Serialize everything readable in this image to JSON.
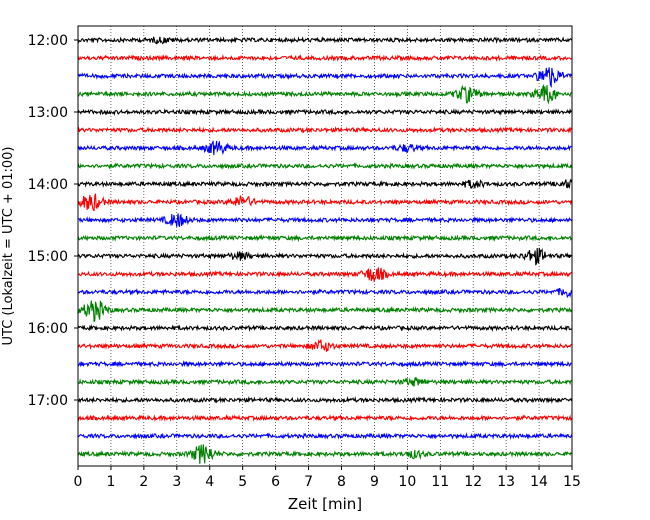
{
  "chart_data": {
    "type": "line",
    "title": "",
    "xlabel": "Zeit  [min]",
    "ylabel": "UTC (Lokalzeit = UTC + 01:00)",
    "xlim": [
      0,
      15
    ],
    "x_ticks": [
      "0",
      "1",
      "2",
      "3",
      "4",
      "5",
      "6",
      "7",
      "8",
      "9",
      "10",
      "11",
      "12",
      "13",
      "14",
      "15"
    ],
    "y_ticks": [
      "12:00",
      "13:00",
      "14:00",
      "15:00",
      "16:00",
      "17:00"
    ],
    "grid": "vertical dotted at each minute",
    "trace_colors": [
      "#000000",
      "#ff0000",
      "#0000ff",
      "#008000"
    ],
    "series": [
      {
        "start": "12:00",
        "color": "#000000",
        "events": [
          [
            2.5,
            2
          ]
        ]
      },
      {
        "start": "12:15",
        "color": "#ff0000",
        "events": []
      },
      {
        "start": "12:30",
        "color": "#0000ff",
        "events": [
          [
            14.3,
            10
          ]
        ]
      },
      {
        "start": "12:45",
        "color": "#008000",
        "events": [
          [
            11.8,
            7
          ],
          [
            14.2,
            8
          ]
        ]
      },
      {
        "start": "13:00",
        "color": "#000000",
        "events": []
      },
      {
        "start": "13:15",
        "color": "#ff0000",
        "events": []
      },
      {
        "start": "13:30",
        "color": "#0000ff",
        "events": [
          [
            4.2,
            6
          ],
          [
            10.0,
            3
          ]
        ]
      },
      {
        "start": "13:45",
        "color": "#008000",
        "events": []
      },
      {
        "start": "14:00",
        "color": "#000000",
        "events": [
          [
            12.0,
            3
          ],
          [
            14.9,
            3
          ]
        ]
      },
      {
        "start": "14:15",
        "color": "#ff0000",
        "events": [
          [
            0.4,
            8
          ],
          [
            5.0,
            5
          ]
        ]
      },
      {
        "start": "14:30",
        "color": "#0000ff",
        "events": [
          [
            3.0,
            6
          ]
        ]
      },
      {
        "start": "14:45",
        "color": "#008000",
        "events": []
      },
      {
        "start": "15:00",
        "color": "#000000",
        "events": [
          [
            4.9,
            3
          ],
          [
            13.9,
            7
          ]
        ]
      },
      {
        "start": "15:15",
        "color": "#ff0000",
        "events": [
          [
            9.0,
            7
          ]
        ]
      },
      {
        "start": "15:30",
        "color": "#0000ff",
        "events": [
          [
            14.9,
            4
          ]
        ]
      },
      {
        "start": "15:45",
        "color": "#008000",
        "events": [
          [
            0.5,
            10
          ]
        ]
      },
      {
        "start": "16:00",
        "color": "#000000",
        "events": []
      },
      {
        "start": "16:15",
        "color": "#ff0000",
        "events": [
          [
            7.4,
            5
          ]
        ]
      },
      {
        "start": "16:30",
        "color": "#0000ff",
        "events": []
      },
      {
        "start": "16:45",
        "color": "#008000",
        "events": [
          [
            10.2,
            3
          ]
        ]
      },
      {
        "start": "17:00",
        "color": "#000000",
        "events": []
      },
      {
        "start": "17:15",
        "color": "#ff0000",
        "events": []
      },
      {
        "start": "17:30",
        "color": "#0000ff",
        "events": []
      },
      {
        "start": "17:45",
        "color": "#008000",
        "events": [
          [
            3.8,
            9
          ],
          [
            10.2,
            3
          ]
        ]
      }
    ]
  }
}
